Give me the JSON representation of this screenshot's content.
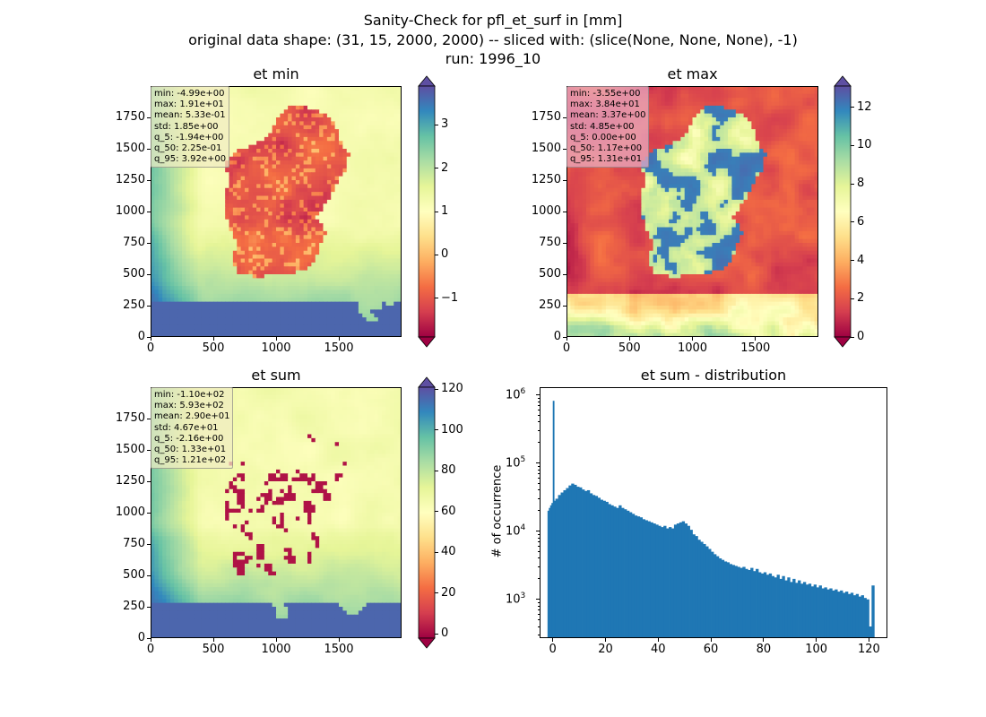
{
  "figure": {
    "title_lines": [
      "Sanity-Check for pfl_et_surf in [mm]",
      "original data shape: (31, 15, 2000, 2000) -- sliced with: (slice(None, None, None), -1)",
      "run: 1996_10"
    ]
  },
  "colors": {
    "histogram_bar": "#1f77b4",
    "spectral": [
      "#9e0142",
      "#d53e4f",
      "#f46d43",
      "#fdae61",
      "#fee08b",
      "#ffffbf",
      "#e6f598",
      "#abdda4",
      "#66c2a5",
      "#3288bd",
      "#5e4fa2"
    ]
  },
  "chart_data": [
    {
      "type": "heatmap",
      "title": "et min",
      "colormap": "Spectral",
      "x_ticks": [
        "0",
        "500",
        "1000",
        "1500"
      ],
      "y_ticks": [
        "0",
        "250",
        "500",
        "750",
        "1000",
        "1250",
        "1500",
        "1750"
      ],
      "x_range": [
        0,
        2000
      ],
      "y_range": [
        0,
        2000
      ],
      "colorbar": {
        "range": [
          -1.9,
          3.9
        ],
        "ticks": [
          "−1",
          "0",
          "1",
          "2",
          "3"
        ],
        "tick_values": [
          -1,
          0,
          1,
          2,
          3
        ],
        "extend": "both"
      },
      "stats": [
        "min: -4.99e+00",
        "max: 1.91e+01",
        "mean: 5.33e-01",
        "std: 1.85e+00",
        "q_5: -1.94e+00",
        "q_50: 2.25e-01",
        "q_95: 3.92e+00"
      ]
    },
    {
      "type": "heatmap",
      "title": "et max",
      "colormap": "Spectral",
      "x_ticks": [
        "0",
        "500",
        "1000",
        "1500"
      ],
      "y_ticks": [
        "0",
        "250",
        "500",
        "750",
        "1000",
        "1250",
        "1500",
        "1750"
      ],
      "x_range": [
        0,
        2000
      ],
      "y_range": [
        0,
        2000
      ],
      "colorbar": {
        "range": [
          0,
          13.1
        ],
        "ticks": [
          "0",
          "2",
          "4",
          "6",
          "8",
          "10",
          "12"
        ],
        "tick_values": [
          0,
          2,
          4,
          6,
          8,
          10,
          12
        ],
        "extend": "both"
      },
      "stats": [
        "min: -3.55e+00",
        "max: 3.84e+01",
        "mean: 3.37e+00",
        "std: 4.85e+00",
        "q_5: 0.00e+00",
        "q_50: 1.17e+00",
        "q_95: 1.31e+01"
      ]
    },
    {
      "type": "heatmap",
      "title": "et sum",
      "colormap": "Spectral",
      "x_ticks": [
        "0",
        "500",
        "1000",
        "1500"
      ],
      "y_ticks": [
        "0",
        "250",
        "500",
        "750",
        "1000",
        "1250",
        "1500",
        "1750"
      ],
      "x_range": [
        0,
        2000
      ],
      "y_range": [
        0,
        2000
      ],
      "colorbar": {
        "range": [
          -2.16,
          121
        ],
        "ticks": [
          "0",
          "20",
          "40",
          "60",
          "80",
          "100",
          "120"
        ],
        "tick_values": [
          0,
          20,
          40,
          60,
          80,
          100,
          120
        ],
        "extend": "both"
      },
      "stats": [
        "min: -1.10e+02",
        "max: 5.93e+02",
        "mean: 2.90e+01",
        "std: 4.67e+01",
        "q_5: -2.16e+00",
        "q_50: 1.33e+01",
        "q_95: 1.21e+02"
      ]
    },
    {
      "type": "bar",
      "title": "et sum - distribution",
      "ylabel": "# of occurrence",
      "xlabel": "",
      "yscale": "log",
      "x_range": [
        -5,
        127
      ],
      "y_range": [
        270,
        1300000
      ],
      "x_ticks": [
        "0",
        "20",
        "40",
        "60",
        "80",
        "100",
        "120"
      ],
      "x_tick_values": [
        0,
        20,
        40,
        60,
        80,
        100,
        120
      ],
      "y_ticks": [
        {
          "base": "10",
          "exp": "3",
          "value": 1000
        },
        {
          "base": "10",
          "exp": "4",
          "value": 10000
        },
        {
          "base": "10",
          "exp": "5",
          "value": 100000
        },
        {
          "base": "10",
          "exp": "6",
          "value": 1000000
        }
      ],
      "bins": [
        [
          -2.0,
          20000
        ],
        [
          -1.5,
          22000
        ],
        [
          -1.0,
          24000
        ],
        [
          -0.5,
          26000
        ],
        [
          0.0,
          820000
        ],
        [
          0.5,
          28000
        ],
        [
          1.0,
          30000
        ],
        [
          2.0,
          34000
        ],
        [
          3.0,
          37000
        ],
        [
          4.0,
          40000
        ],
        [
          5.0,
          43000
        ],
        [
          6.0,
          47000
        ],
        [
          7.0,
          50000
        ],
        [
          8.0,
          48000
        ],
        [
          9.0,
          45000
        ],
        [
          10.0,
          44000
        ],
        [
          11.0,
          41000
        ],
        [
          12.0,
          39000
        ],
        [
          13.0,
          40000
        ],
        [
          14.0,
          36000
        ],
        [
          15.0,
          34000
        ],
        [
          16.0,
          33000
        ],
        [
          17.0,
          31000
        ],
        [
          18.0,
          29000
        ],
        [
          19.0,
          28000
        ],
        [
          20.0,
          27000
        ],
        [
          21.0,
          25000
        ],
        [
          22.0,
          24000
        ],
        [
          23.0,
          23000
        ],
        [
          24.0,
          22000
        ],
        [
          25.0,
          24000
        ],
        [
          26.0,
          22000
        ],
        [
          27.0,
          21000
        ],
        [
          28.0,
          20000
        ],
        [
          29.0,
          19000
        ],
        [
          30.0,
          18000
        ],
        [
          31.0,
          17000
        ],
        [
          32.0,
          16500
        ],
        [
          33.0,
          16000
        ],
        [
          34.0,
          15000
        ],
        [
          35.0,
          14500
        ],
        [
          36.0,
          14000
        ],
        [
          37.0,
          13500
        ],
        [
          38.0,
          13000
        ],
        [
          39.0,
          12500
        ],
        [
          40.0,
          12000
        ],
        [
          41.0,
          11500
        ],
        [
          42.0,
          12000
        ],
        [
          43.0,
          11000
        ],
        [
          44.0,
          11500
        ],
        [
          45.0,
          11000
        ],
        [
          46.0,
          12500
        ],
        [
          47.0,
          13000
        ],
        [
          48.0,
          13500
        ],
        [
          49.0,
          14000
        ],
        [
          50.0,
          13000
        ],
        [
          51.0,
          12000
        ],
        [
          52.0,
          10500
        ],
        [
          53.0,
          9000
        ],
        [
          54.0,
          8500
        ],
        [
          55.0,
          7500
        ],
        [
          56.0,
          7000
        ],
        [
          57.0,
          6500
        ],
        [
          58.0,
          6000
        ],
        [
          59.0,
          5500
        ],
        [
          60.0,
          5000
        ],
        [
          61.0,
          4600
        ],
        [
          62.0,
          4300
        ],
        [
          63.0,
          4000
        ],
        [
          64.0,
          3800
        ],
        [
          65.0,
          3600
        ],
        [
          66.0,
          3500
        ],
        [
          67.0,
          3300
        ],
        [
          68.0,
          3200
        ],
        [
          69.0,
          3100
        ],
        [
          70.0,
          3000
        ],
        [
          71.0,
          2900
        ],
        [
          72.0,
          3000
        ],
        [
          73.0,
          2800
        ],
        [
          74.0,
          2700
        ],
        [
          75.0,
          2900
        ],
        [
          76.0,
          2600
        ],
        [
          77.0,
          2800
        ],
        [
          78.0,
          2500
        ],
        [
          79.0,
          2400
        ],
        [
          80.0,
          2500
        ],
        [
          81.0,
          2300
        ],
        [
          82.0,
          2400
        ],
        [
          83.0,
          2200
        ],
        [
          84.0,
          2100
        ],
        [
          85.0,
          2300
        ],
        [
          86.0,
          2000
        ],
        [
          87.0,
          2200
        ],
        [
          88.0,
          1900
        ],
        [
          89.0,
          2100
        ],
        [
          90.0,
          1800
        ],
        [
          91.0,
          2000
        ],
        [
          92.0,
          1750
        ],
        [
          93.0,
          1900
        ],
        [
          94.0,
          1700
        ],
        [
          95.0,
          1800
        ],
        [
          96.0,
          1650
        ],
        [
          97.0,
          1700
        ],
        [
          98.0,
          1550
        ],
        [
          99.0,
          1650
        ],
        [
          100.0,
          1500
        ],
        [
          101.0,
          1600
        ],
        [
          102.0,
          1450
        ],
        [
          103.0,
          1500
        ],
        [
          104.0,
          1400
        ],
        [
          105.0,
          1450
        ],
        [
          106.0,
          1350
        ],
        [
          107.0,
          1400
        ],
        [
          108.0,
          1300
        ],
        [
          109.0,
          1350
        ],
        [
          110.0,
          1250
        ],
        [
          111.0,
          1300
        ],
        [
          112.0,
          1200
        ],
        [
          113.0,
          1250
        ],
        [
          114.0,
          1150
        ],
        [
          115.0,
          1200
        ],
        [
          116.0,
          1100
        ],
        [
          117.0,
          1150
        ],
        [
          118.0,
          1050
        ],
        [
          119.0,
          1000
        ],
        [
          120.0,
          400
        ],
        [
          121.0,
          1600
        ]
      ]
    }
  ]
}
